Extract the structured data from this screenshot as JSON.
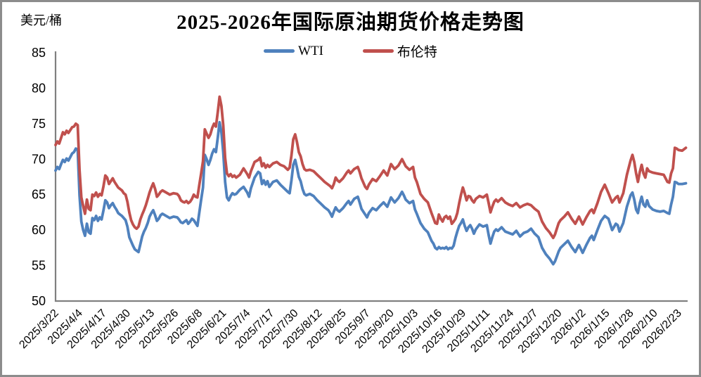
{
  "chart_data": {
    "type": "line",
    "title": "2025-2026年国际原油期货价格走势图",
    "unit_label": "美元/桶",
    "ylim": [
      50,
      85
    ],
    "y_ticks": [
      85,
      80,
      75,
      70,
      65,
      60,
      55,
      50
    ],
    "grid": "off",
    "legend_position": "top-center",
    "x_tick_labels": [
      "2025/3/22",
      "2025/4/4",
      "2025/4/17",
      "2025/4/30",
      "2025/5/13",
      "2025/5/26",
      "2025/6/8",
      "2025/6/21",
      "2025/7/4",
      "2025/7/17",
      "2025/7/30",
      "2025/8/12",
      "2025/8/25",
      "2025/9/7",
      "2025/9/20",
      "2025/10/3",
      "2025/10/16",
      "2025/10/29",
      "2025/11/11",
      "2025/11/24",
      "2025/12/7",
      "2025/12/20",
      "2026/1/2",
      "2026/1/15",
      "2026/1/28",
      "2026/2/10",
      "2026/2/23"
    ],
    "x_tick_days": [
      0,
      13,
      26,
      39,
      52,
      65,
      78,
      91,
      104,
      117,
      130,
      143,
      156,
      169,
      182,
      195,
      208,
      221,
      234,
      247,
      260,
      273,
      286,
      299,
      312,
      325,
      338
    ],
    "x_days": [
      0,
      1,
      2,
      3,
      4,
      5,
      6,
      7,
      8,
      9,
      10,
      11,
      12,
      13,
      14,
      15,
      16,
      17,
      18,
      19,
      20,
      21,
      22,
      23,
      24,
      25,
      26,
      27,
      28,
      29,
      30,
      31,
      32,
      33,
      34,
      35,
      36,
      37,
      38,
      39,
      40,
      41,
      42,
      43,
      44,
      45,
      46,
      47,
      48,
      49,
      50,
      51,
      52,
      53,
      54,
      55,
      56,
      57,
      58,
      60,
      62,
      64,
      66,
      67,
      68,
      69,
      70,
      71,
      72,
      73,
      74,
      75,
      76,
      77,
      78,
      79,
      80,
      81,
      82,
      83,
      84,
      85,
      86,
      87,
      88,
      89,
      90,
      91,
      92,
      93,
      94,
      95,
      96,
      97,
      98,
      100,
      102,
      104,
      105,
      106,
      108,
      110,
      111,
      112,
      113,
      114,
      115,
      116,
      118,
      120,
      122,
      124,
      126,
      127,
      128,
      129,
      130,
      131,
      132,
      133,
      134,
      135,
      136,
      138,
      140,
      142,
      144,
      146,
      148,
      149,
      150,
      151,
      152,
      153,
      154,
      156,
      158,
      159,
      160,
      162,
      164,
      165,
      166,
      168,
      169,
      170,
      172,
      174,
      176,
      178,
      180,
      182,
      184,
      186,
      188,
      189,
      190,
      192,
      194,
      195,
      196,
      198,
      200,
      202,
      204,
      205,
      206,
      207,
      208,
      209,
      210,
      211,
      212,
      213,
      214,
      215,
      216,
      217,
      218,
      219,
      220,
      221,
      222,
      223,
      224,
      225,
      226,
      227,
      228,
      230,
      232,
      234,
      235,
      236,
      237,
      238,
      239,
      240,
      242,
      244,
      246,
      248,
      250,
      252,
      254,
      256,
      258,
      260,
      262,
      264,
      266,
      268,
      270,
      271,
      272,
      273,
      274,
      276,
      278,
      280,
      282,
      284,
      286,
      288,
      290,
      291,
      292,
      294,
      296,
      298,
      300,
      302,
      304,
      305,
      306,
      308,
      310,
      312,
      313,
      314,
      315,
      316,
      317,
      318,
      319,
      320,
      321,
      322,
      324,
      326,
      328,
      330,
      332,
      333,
      334,
      335,
      336,
      337,
      338,
      340,
      342
    ],
    "series": [
      {
        "name": "WTI",
        "key": "wti",
        "color": "#4F81BD",
        "values": [
          68.4,
          68.9,
          68.6,
          69.3,
          69.9,
          69.6,
          70.1,
          69.8,
          70.3,
          70.8,
          71.0,
          71.5,
          71.3,
          64.9,
          61.2,
          60.0,
          59.2,
          60.9,
          59.7,
          59.5,
          61.7,
          61.4,
          62.0,
          61.3,
          61.8,
          61.5,
          62.8,
          64.2,
          63.9,
          63.1,
          63.5,
          63.8,
          63.3,
          62.9,
          62.4,
          62.2,
          62.0,
          61.7,
          61.4,
          60.5,
          59.0,
          58.4,
          57.8,
          57.3,
          57.1,
          56.9,
          58.0,
          59.1,
          59.8,
          60.3,
          61.0,
          61.9,
          62.4,
          62.8,
          62.1,
          61.3,
          61.6,
          62.1,
          62.3,
          62.0,
          61.7,
          61.9,
          61.8,
          61.5,
          61.1,
          61.0,
          61.2,
          61.4,
          60.9,
          61.2,
          61.6,
          61.4,
          61.0,
          60.6,
          62.5,
          64.3,
          66.0,
          70.6,
          70.0,
          69.2,
          69.9,
          70.8,
          71.4,
          71.0,
          73.0,
          75.2,
          73.8,
          71.0,
          66.8,
          64.6,
          64.2,
          64.8,
          65.2,
          65.0,
          65.1,
          65.7,
          66.1,
          65.3,
          64.7,
          65.9,
          67.4,
          68.2,
          68.0,
          66.5,
          67.0,
          66.4,
          66.9,
          66.1,
          66.8,
          67.0,
          66.4,
          65.9,
          65.4,
          65.2,
          67.0,
          69.2,
          69.9,
          68.8,
          67.5,
          66.9,
          65.8,
          65.1,
          64.9,
          65.1,
          64.8,
          64.2,
          63.7,
          63.2,
          62.8,
          62.4,
          61.9,
          62.6,
          63.2,
          62.8,
          62.6,
          63.1,
          63.8,
          64.1,
          63.6,
          64.4,
          64.7,
          63.9,
          63.0,
          62.2,
          61.8,
          62.4,
          63.1,
          62.8,
          63.4,
          63.9,
          63.3,
          64.6,
          63.9,
          64.5,
          65.4,
          64.9,
          64.3,
          63.8,
          64.1,
          62.9,
          62.3,
          61.0,
          60.2,
          59.7,
          58.5,
          58.1,
          57.5,
          57.3,
          57.6,
          57.4,
          57.5,
          57.4,
          57.6,
          57.3,
          57.5,
          57.4,
          57.8,
          58.9,
          59.8,
          60.6,
          61.0,
          61.5,
          60.6,
          59.9,
          60.4,
          60.7,
          60.2,
          59.5,
          60.1,
          60.8,
          60.5,
          60.7,
          59.3,
          58.1,
          59.0,
          59.8,
          60.1,
          59.9,
          60.4,
          59.8,
          59.6,
          59.4,
          59.9,
          59.1,
          59.6,
          59.8,
          60.2,
          59.5,
          59.0,
          57.5,
          56.6,
          56.0,
          55.2,
          55.6,
          56.3,
          57.0,
          57.5,
          58.0,
          58.5,
          57.6,
          56.9,
          57.9,
          56.8,
          57.9,
          58.9,
          59.2,
          58.6,
          60.0,
          61.3,
          62.0,
          61.6,
          60.0,
          60.9,
          60.7,
          59.8,
          61.0,
          63.3,
          64.9,
          65.3,
          64.3,
          62.9,
          62.4,
          63.8,
          64.7,
          63.6,
          63.3,
          64.2,
          63.4,
          62.9,
          62.7,
          62.6,
          62.7,
          62.4,
          62.3,
          63.6,
          64.7,
          66.8,
          66.7,
          66.5,
          66.5,
          66.6
        ]
      },
      {
        "name": "布伦特",
        "key": "brent",
        "color": "#C0504D",
        "values": [
          72.0,
          72.5,
          72.2,
          73.0,
          73.8,
          73.5,
          74.0,
          73.7,
          74.1,
          74.5,
          74.6,
          75.0,
          74.8,
          68.5,
          64.6,
          63.4,
          62.3,
          64.3,
          63.0,
          62.8,
          65.0,
          64.8,
          65.3,
          64.7,
          65.1,
          64.9,
          66.2,
          67.7,
          67.4,
          66.5,
          66.9,
          67.3,
          66.8,
          66.4,
          66.0,
          65.8,
          65.6,
          65.2,
          65.0,
          64.0,
          62.5,
          61.4,
          60.8,
          60.4,
          60.2,
          60.5,
          61.5,
          62.2,
          62.8,
          63.5,
          64.4,
          65.3,
          66.0,
          66.6,
          65.8,
          64.7,
          65.0,
          65.4,
          65.6,
          65.3,
          65.0,
          65.2,
          65.1,
          64.8,
          64.2,
          64.0,
          63.9,
          64.1,
          63.8,
          64.0,
          64.4,
          65.0,
          64.7,
          64.6,
          66.4,
          68.0,
          69.7,
          74.2,
          73.6,
          73.0,
          73.5,
          74.4,
          75.0,
          74.6,
          76.6,
          78.8,
          77.5,
          74.8,
          70.2,
          68.0,
          67.6,
          67.9,
          67.5,
          67.7,
          67.4,
          67.8,
          68.7,
          67.9,
          67.4,
          68.3,
          69.6,
          69.9,
          70.2,
          69.0,
          69.4,
          68.8,
          69.2,
          68.9,
          69.4,
          69.6,
          69.2,
          69.0,
          68.5,
          68.8,
          70.5,
          72.8,
          73.5,
          72.4,
          71.0,
          70.4,
          69.3,
          68.6,
          68.4,
          68.5,
          68.3,
          67.8,
          67.3,
          66.8,
          66.4,
          66.2,
          65.9,
          66.5,
          67.4,
          67.0,
          66.8,
          67.3,
          68.1,
          68.4,
          68.0,
          68.6,
          68.9,
          68.2,
          67.3,
          66.1,
          65.8,
          66.4,
          67.2,
          66.9,
          67.6,
          68.4,
          67.7,
          69.3,
          68.6,
          69.1,
          70.0,
          69.5,
          69.0,
          68.5,
          68.9,
          67.4,
          66.8,
          65.1,
          64.4,
          63.9,
          62.4,
          61.7,
          61.0,
          60.9,
          62.2,
          61.6,
          61.2,
          61.8,
          62.0,
          61.6,
          61.9,
          60.9,
          61.2,
          61.6,
          62.4,
          63.8,
          65.0,
          66.0,
          65.2,
          64.2,
          64.8,
          64.7,
          64.2,
          63.9,
          64.4,
          64.8,
          64.6,
          65.0,
          63.8,
          62.5,
          63.3,
          64.0,
          64.3,
          64.0,
          64.5,
          63.9,
          63.6,
          63.4,
          63.8,
          63.2,
          63.5,
          63.7,
          63.5,
          63.0,
          62.6,
          61.2,
          60.3,
          59.7,
          58.9,
          59.4,
          60.2,
          61.0,
          61.4,
          61.9,
          62.5,
          61.6,
          60.9,
          61.9,
          60.8,
          61.8,
          62.7,
          62.9,
          62.4,
          63.8,
          65.4,
          66.4,
          65.2,
          63.9,
          64.6,
          64.8,
          63.9,
          65.2,
          67.8,
          69.8,
          70.6,
          69.6,
          68.0,
          66.8,
          68.2,
          69.2,
          68.0,
          67.4,
          68.7,
          68.3,
          68.1,
          68.0,
          67.9,
          67.8,
          66.8,
          66.7,
          68.0,
          68.7,
          71.6,
          71.5,
          71.3,
          71.2,
          71.6
        ]
      }
    ]
  }
}
